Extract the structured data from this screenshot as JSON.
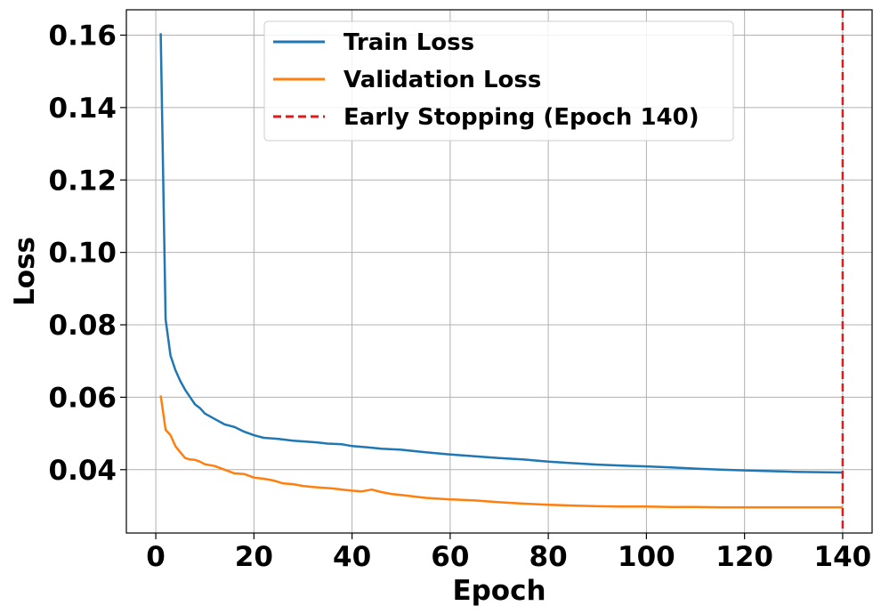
{
  "chart_data": {
    "type": "line",
    "xlabel": "Epoch",
    "ylabel": "Loss",
    "xlim": [
      -6,
      146
    ],
    "ylim": [
      0.0225,
      0.167
    ],
    "x_ticks": [
      0,
      20,
      40,
      60,
      80,
      100,
      120,
      140
    ],
    "y_ticks": [
      0.04,
      0.06,
      0.08,
      0.1,
      0.12,
      0.14,
      0.16
    ],
    "x_tick_labels": [
      "0",
      "20",
      "40",
      "60",
      "80",
      "100",
      "120",
      "140"
    ],
    "y_tick_labels": [
      "0.04",
      "0.06",
      "0.08",
      "0.10",
      "0.12",
      "0.14",
      "0.16"
    ],
    "grid": true,
    "legend_position": "top-center",
    "series": [
      {
        "name": "Train Loss",
        "color": "#1f77b4",
        "x": [
          1,
          2,
          3,
          4,
          5,
          6,
          7,
          8,
          9,
          10,
          12,
          14,
          16,
          18,
          20,
          22,
          25,
          28,
          30,
          33,
          35,
          38,
          40,
          43,
          46,
          50,
          55,
          60,
          65,
          70,
          75,
          80,
          85,
          90,
          95,
          100,
          105,
          110,
          115,
          120,
          125,
          130,
          135,
          140
        ],
        "values": [
          0.1605,
          0.0815,
          0.0715,
          0.0675,
          0.0645,
          0.062,
          0.06,
          0.058,
          0.057,
          0.0555,
          0.054,
          0.0525,
          0.0518,
          0.0505,
          0.0495,
          0.0488,
          0.0485,
          0.048,
          0.0478,
          0.0475,
          0.0472,
          0.047,
          0.0465,
          0.0462,
          0.0458,
          0.0455,
          0.0448,
          0.0442,
          0.0437,
          0.0432,
          0.0428,
          0.0422,
          0.0418,
          0.0414,
          0.0411,
          0.0409,
          0.0406,
          0.0403,
          0.04,
          0.0398,
          0.0396,
          0.0394,
          0.0393,
          0.0392
        ]
      },
      {
        "name": "Validation Loss",
        "color": "#ff7f0e",
        "x": [
          1,
          2,
          3,
          4,
          5,
          6,
          7,
          8,
          9,
          10,
          12,
          14,
          16,
          18,
          20,
          22,
          24,
          26,
          28,
          30,
          32,
          34,
          36,
          38,
          40,
          42,
          44,
          46,
          48,
          50,
          55,
          60,
          65,
          70,
          75,
          80,
          85,
          90,
          95,
          100,
          105,
          110,
          115,
          120,
          125,
          130,
          135,
          140
        ],
        "values": [
          0.0605,
          0.051,
          0.0495,
          0.0465,
          0.0448,
          0.0432,
          0.0428,
          0.0427,
          0.0422,
          0.0415,
          0.041,
          0.04,
          0.039,
          0.0388,
          0.0378,
          0.0375,
          0.037,
          0.0362,
          0.036,
          0.0355,
          0.0352,
          0.035,
          0.0348,
          0.0345,
          0.0342,
          0.034,
          0.0345,
          0.0338,
          0.0333,
          0.033,
          0.0322,
          0.0318,
          0.0315,
          0.031,
          0.0306,
          0.0303,
          0.0301,
          0.0299,
          0.0298,
          0.0298,
          0.0297,
          0.0297,
          0.0296,
          0.0296,
          0.0296,
          0.0296,
          0.0296,
          0.0296
        ]
      }
    ],
    "vline": {
      "x": 140,
      "label": "Early Stopping (Epoch 140)",
      "color": "#e31a1c",
      "style": "dashed"
    }
  }
}
